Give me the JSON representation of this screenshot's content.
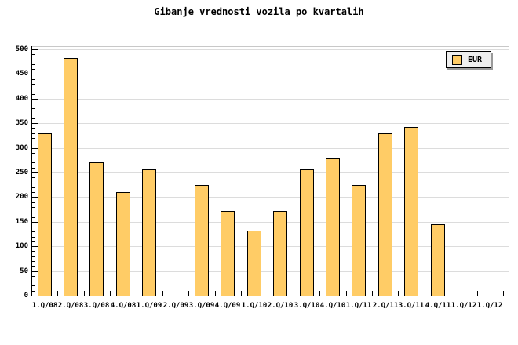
{
  "chart_data": {
    "type": "bar",
    "title": "Gibanje vrednosti vozila po kvartalih",
    "categories": [
      "1.Q/08",
      "2.Q/08",
      "3.Q/08",
      "4.Q/08",
      "1.Q/09",
      "2.Q/09",
      "3.Q/09",
      "4.Q/09",
      "1.Q/10",
      "2.Q/10",
      "3.Q/10",
      "4.Q/10",
      "1.Q/11",
      "2.Q/11",
      "3.Q/11",
      "4.Q/11",
      "1.Q/12",
      "1.Q/12"
    ],
    "series": [
      {
        "name": "EUR",
        "values": [
          330,
          483,
          271,
          210,
          257,
          0,
          224,
          172,
          132,
          172,
          257,
          278,
          225,
          330,
          343,
          145,
          0,
          0
        ]
      }
    ],
    "xlabel": "",
    "ylabel": "",
    "ylim": [
      0,
      500
    ],
    "ytick_step": 50,
    "yminor_step": 10,
    "ytick_labels": [
      "0",
      "50",
      "100",
      "150",
      "200",
      "250",
      "300",
      "350",
      "400",
      "450",
      "500"
    ],
    "grid": true,
    "legend_position": "top-right",
    "colors": {
      "bar_fill": "#FFCC66",
      "bar_border": "#000000",
      "grid": "#DCDCDC",
      "axis": "#000000",
      "background": "#FFFFFF",
      "legend_bg": "#EFEFEF",
      "legend_shadow": "#9A9A9A"
    }
  }
}
